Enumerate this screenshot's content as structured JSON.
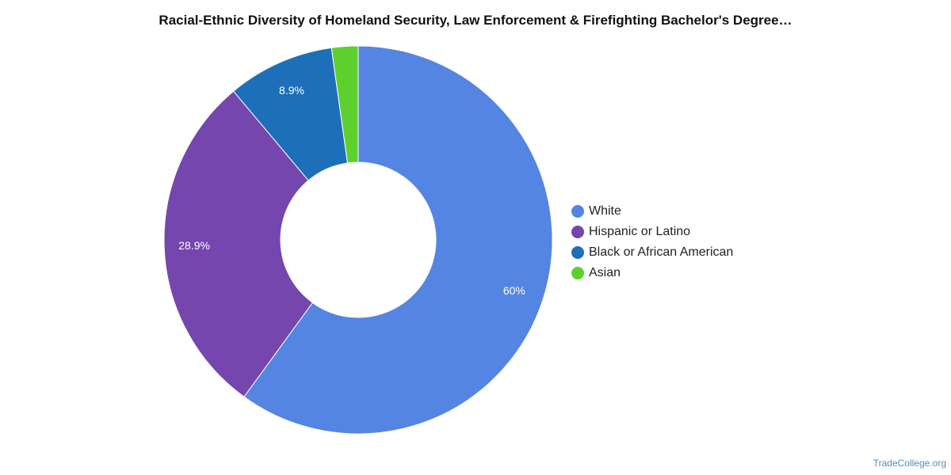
{
  "chart_data": {
    "type": "pie",
    "variant": "donut",
    "title": "Racial-Ethnic Diversity of Homeland Security, Law Enforcement & Firefighting Bachelor's Degree…",
    "slices": [
      {
        "label": "White",
        "value": 60.0,
        "display": "60%",
        "color": "#5485E2"
      },
      {
        "label": "Hispanic or Latino",
        "value": 28.9,
        "display": "28.9%",
        "color": "#7446AE"
      },
      {
        "label": "Black or African American",
        "value": 8.9,
        "display": "8.9%",
        "color": "#1D6FBA"
      },
      {
        "label": "Asian",
        "value": 2.2,
        "display": "",
        "color": "#5DD02E"
      }
    ],
    "legend_position": "right"
  },
  "source": "TradeCollege.org"
}
